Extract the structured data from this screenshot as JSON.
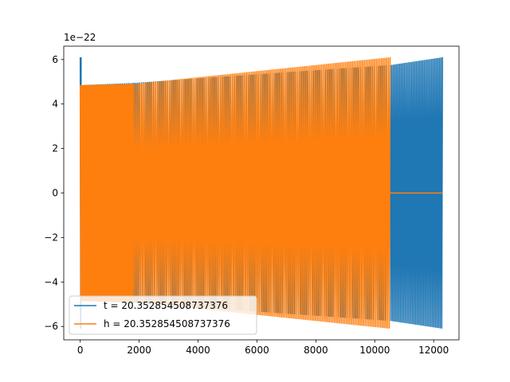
{
  "chart_data": {
    "type": "line",
    "title": "",
    "xlabel": "",
    "ylabel": "",
    "y_scale_label": "1e−22",
    "xlim": [
      -560,
      12860
    ],
    "ylim": [
      -6.6,
      6.6
    ],
    "x_ticks": [
      0,
      2000,
      4000,
      6000,
      8000,
      10000,
      12000
    ],
    "x_tick_labels": [
      "0",
      "2000",
      "4000",
      "6000",
      "8000",
      "10000",
      "12000"
    ],
    "y_ticks": [
      -6,
      -4,
      -2,
      0,
      2,
      4,
      6
    ],
    "y_tick_labels": [
      "−6",
      "−4",
      "−2",
      "0",
      "2",
      "4",
      "6"
    ],
    "grid": false,
    "legend_position": "lower-left",
    "series": [
      {
        "name": "t = 20.352854508737376",
        "color": "#1f77b4",
        "segments": [
          {
            "x_start": 0,
            "x_end": 30,
            "amp_start": 6.1,
            "amp_end": 6.1,
            "cycles": 1,
            "offset": 0
          },
          {
            "x_start": 30,
            "x_end": 1820,
            "amp_start": 4.85,
            "amp_end": 4.95,
            "cycles": 28,
            "offset": 0
          },
          {
            "x_start": 1820,
            "x_end": 10530,
            "amp_start": 4.95,
            "amp_end": 5.75,
            "cycles": 130,
            "offset": 0
          },
          {
            "x_start": 10530,
            "x_end": 12300,
            "amp_start": 5.75,
            "amp_end": 6.1,
            "cycles": 34,
            "offset": 0
          }
        ]
      },
      {
        "name": "h = 20.352854508737376",
        "color": "#ff7f0e",
        "segments": [
          {
            "x_start": 0,
            "x_end": 40,
            "amp_start": 4.85,
            "amp_end": 4.85,
            "cycles": 1,
            "offset": 0
          },
          {
            "x_start": 40,
            "x_end": 1800,
            "amp_start": 4.85,
            "amp_end": 4.9,
            "cycles": 45,
            "offset": 0
          },
          {
            "x_start": 1800,
            "x_end": 10520,
            "amp_start": 4.9,
            "amp_end": 6.1,
            "cycles": 150,
            "offset": 0
          },
          {
            "x_start": 10520,
            "x_end": 12300,
            "amp_start": 0,
            "amp_end": 0,
            "cycles": 0,
            "offset": 0
          }
        ]
      }
    ]
  }
}
